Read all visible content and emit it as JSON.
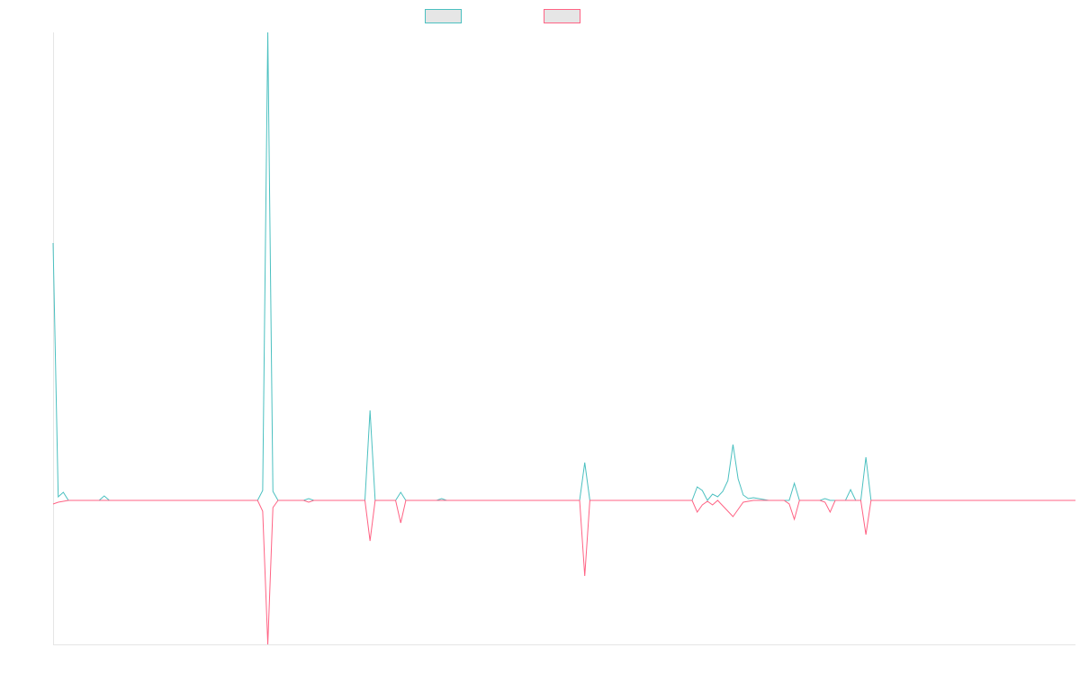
{
  "chart_data": {
    "type": "line",
    "ylim": [
      -160,
      520
    ],
    "legend": "top",
    "series": [
      {
        "color": "#4bc0c0",
        "values": [
          286,
          4,
          9,
          0,
          0,
          0,
          0,
          0,
          0,
          0,
          5,
          0,
          0,
          0,
          0,
          0,
          0,
          0,
          0,
          0,
          0,
          0,
          0,
          0,
          0,
          0,
          0,
          0,
          0,
          0,
          0,
          0,
          0,
          0,
          0,
          0,
          0,
          0,
          0,
          0,
          0,
          11,
          520,
          10,
          0,
          0,
          0,
          0,
          0,
          0,
          2,
          0,
          0,
          0,
          0,
          0,
          0,
          0,
          0,
          0,
          0,
          0,
          100,
          0,
          0,
          0,
          0,
          0,
          9,
          0,
          0,
          0,
          0,
          0,
          0,
          0,
          2,
          0,
          0,
          0,
          0,
          0,
          0,
          0,
          0,
          0,
          0,
          0,
          0,
          0,
          0,
          0,
          0,
          0,
          0,
          0,
          0,
          0,
          0,
          0,
          0,
          0,
          0,
          0,
          42,
          0,
          0,
          0,
          0,
          0,
          0,
          0,
          0,
          0,
          0,
          0,
          0,
          0,
          0,
          0,
          0,
          0,
          0,
          0,
          0,
          0,
          15,
          11,
          0,
          7,
          4,
          10,
          22,
          62,
          24,
          6,
          2,
          3,
          2,
          1,
          0,
          0,
          0,
          0,
          0,
          19,
          0,
          0,
          0,
          0,
          0,
          2,
          0,
          0,
          0,
          0,
          12,
          0,
          0,
          48,
          0,
          0,
          0,
          0,
          0,
          0,
          0,
          0,
          0,
          0,
          0,
          0,
          0,
          0,
          0,
          0,
          0,
          0,
          0,
          0,
          0,
          0,
          0,
          0,
          0,
          0,
          0,
          0,
          0,
          0,
          0,
          0,
          0,
          0,
          0,
          0,
          0,
          0,
          0,
          0,
          0
        ]
      },
      {
        "color": "#ff6384",
        "values": [
          -4,
          -2,
          -1,
          0,
          0,
          0,
          0,
          0,
          0,
          0,
          0,
          0,
          0,
          0,
          0,
          0,
          0,
          0,
          0,
          0,
          0,
          0,
          0,
          0,
          0,
          0,
          0,
          0,
          0,
          0,
          0,
          0,
          0,
          0,
          0,
          0,
          0,
          0,
          0,
          0,
          0,
          -12,
          -160,
          -8,
          0,
          0,
          0,
          0,
          0,
          0,
          -2,
          0,
          0,
          0,
          0,
          0,
          0,
          0,
          0,
          0,
          0,
          0,
          -45,
          0,
          0,
          0,
          0,
          0,
          -25,
          0,
          0,
          0,
          0,
          0,
          0,
          0,
          0,
          0,
          0,
          0,
          0,
          0,
          0,
          0,
          0,
          0,
          0,
          0,
          0,
          0,
          0,
          0,
          0,
          0,
          0,
          0,
          0,
          0,
          0,
          0,
          0,
          0,
          0,
          0,
          -84,
          0,
          0,
          0,
          0,
          0,
          0,
          0,
          0,
          0,
          0,
          0,
          0,
          0,
          0,
          0,
          0,
          0,
          0,
          0,
          0,
          0,
          -13,
          -5,
          -1,
          -5,
          0,
          -6,
          -12,
          -18,
          -10,
          -2,
          -1,
          0,
          0,
          0,
          0,
          0,
          0,
          0,
          -4,
          -21,
          0,
          0,
          0,
          0,
          0,
          -2,
          -13,
          0,
          0,
          0,
          0,
          0,
          0,
          -38,
          0,
          0,
          0,
          0,
          0,
          0,
          0,
          0,
          0,
          0,
          0,
          0,
          0,
          0,
          0,
          0,
          0,
          0,
          0,
          0,
          0,
          0,
          0,
          0,
          0,
          0,
          0,
          0,
          0,
          0,
          0,
          0,
          0,
          0,
          0,
          0,
          0,
          0,
          0,
          0,
          0
        ]
      }
    ]
  }
}
